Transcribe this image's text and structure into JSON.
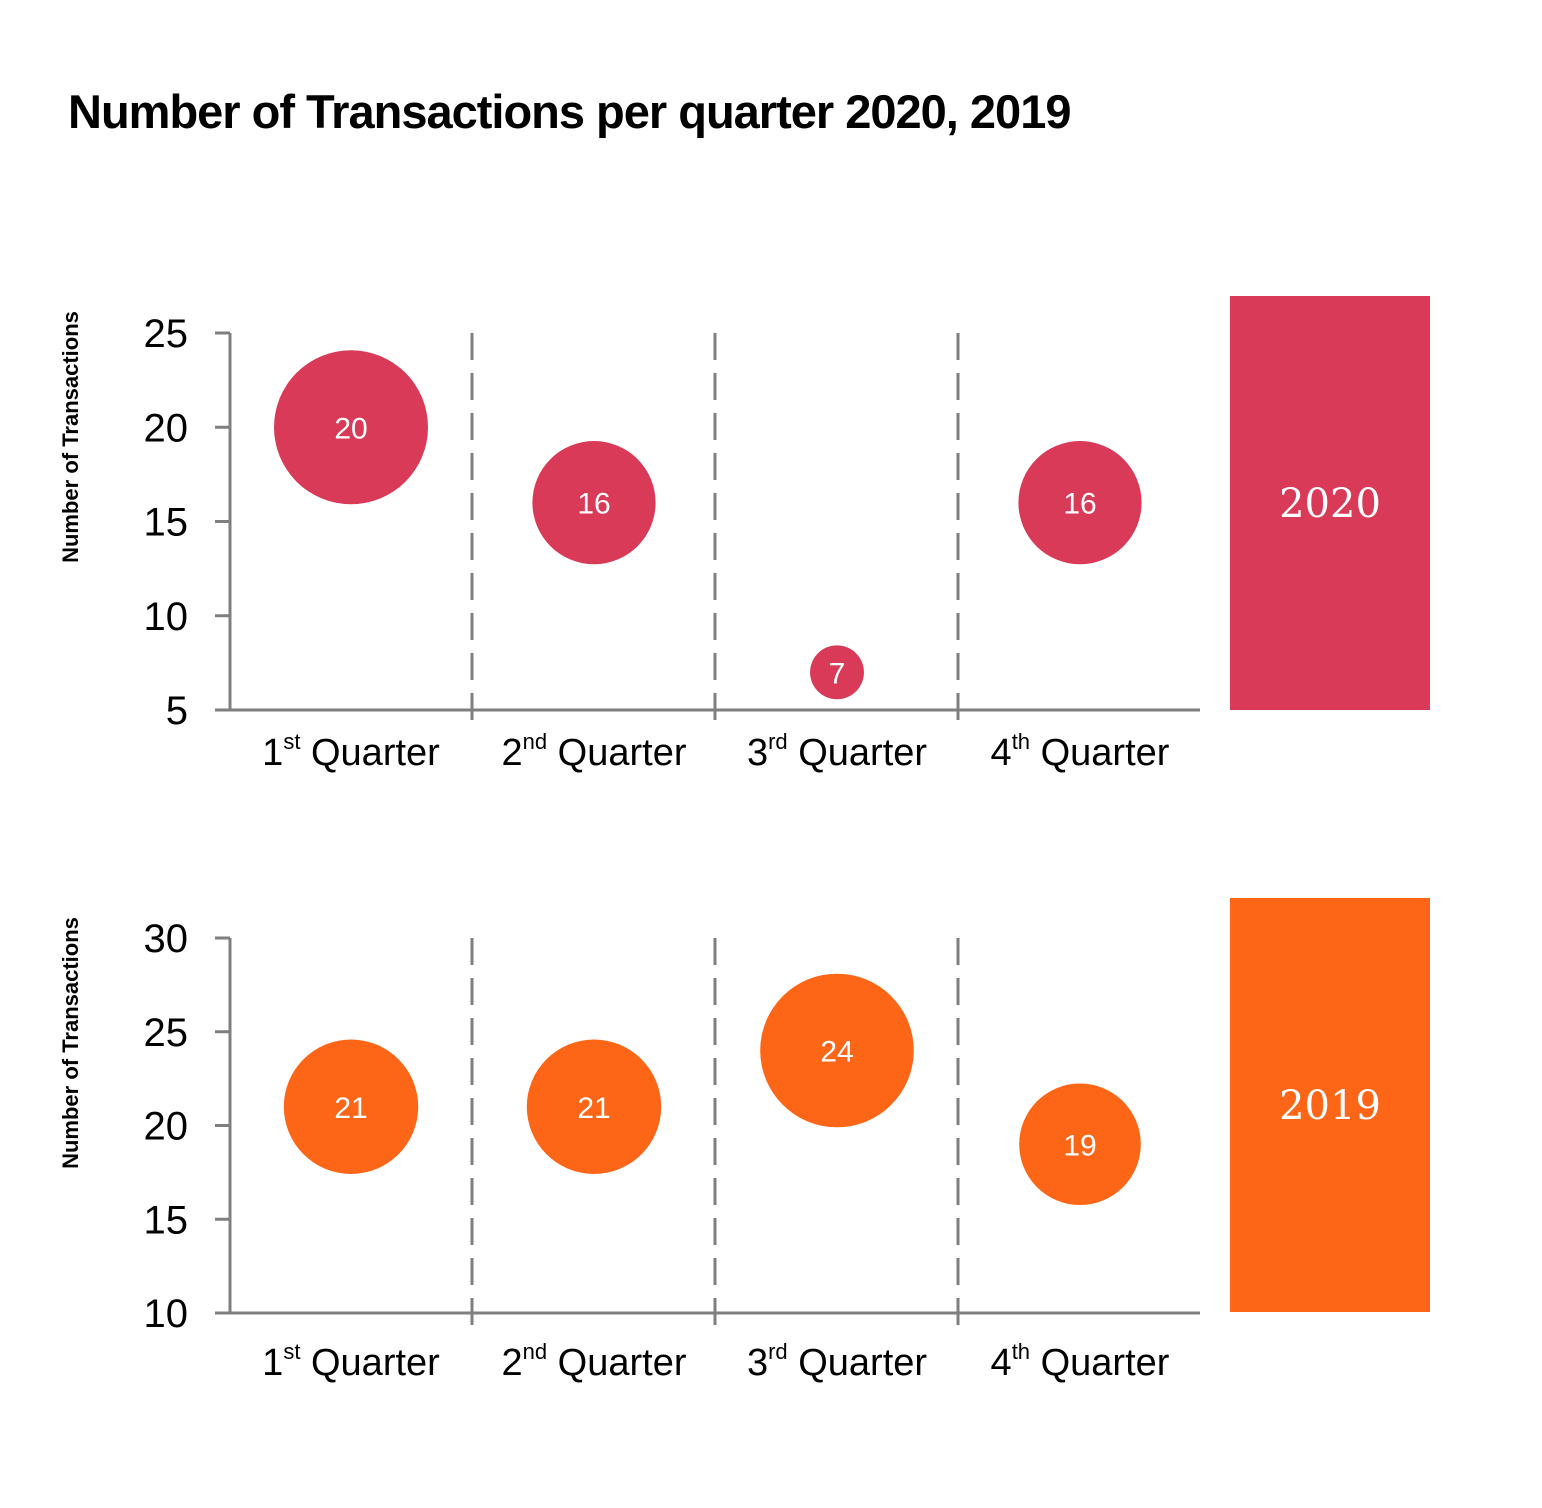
{
  "title": "Number of Transactions per quarter 2020, 2019",
  "chart_data": [
    {
      "type": "scatter",
      "subtype": "bubble",
      "title": "Number of Transactions per quarter 2020, 2019",
      "year": "2020",
      "color": "#D83A58",
      "categories": [
        "1st Quarter",
        "2nd Quarter",
        "3rd Quarter",
        "4th Quarter"
      ],
      "category_parts": [
        [
          "1",
          "st"
        ],
        [
          "2",
          "nd"
        ],
        [
          "3",
          "rd"
        ],
        [
          "4",
          "th"
        ]
      ],
      "values": [
        20,
        16,
        7,
        16
      ],
      "ylabel": "Number of Transactions",
      "xlabel": "",
      "ylim": [
        5,
        25
      ],
      "yticks": [
        5,
        10,
        15,
        20,
        25
      ],
      "grid": false,
      "separators": "dashed vertical between quarters",
      "legend": "right (year box)"
    },
    {
      "type": "scatter",
      "subtype": "bubble",
      "year": "2019",
      "color": "#FC6616",
      "categories": [
        "1st Quarter",
        "2nd Quarter",
        "3rd Quarter",
        "4th Quarter"
      ],
      "category_parts": [
        [
          "1",
          "st"
        ],
        [
          "2",
          "nd"
        ],
        [
          "3",
          "rd"
        ],
        [
          "4",
          "th"
        ]
      ],
      "values": [
        21,
        21,
        24,
        19
      ],
      "ylabel": "Number of Transactions",
      "xlabel": "",
      "ylim": [
        10,
        30
      ],
      "yticks": [
        10,
        15,
        20,
        25,
        30
      ],
      "grid": false,
      "separators": "dashed vertical between quarters",
      "legend": "right (year box)"
    }
  ],
  "colors": {
    "axis": "#7F7F7F",
    "text": "#000000"
  }
}
